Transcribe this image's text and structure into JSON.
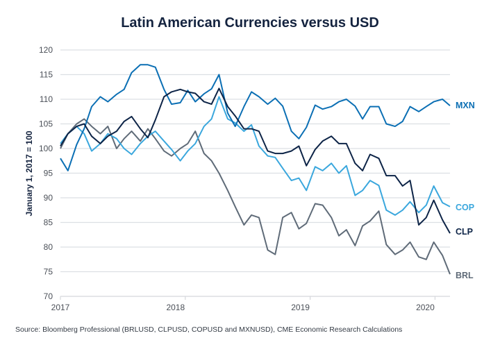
{
  "chart_data": {
    "type": "line",
    "title": "Latin American Currencies versus USD",
    "xlabel": "",
    "ylabel": "January 1, 2017 = 100",
    "ylim": [
      70,
      120
    ],
    "xlim": [
      2017,
      2020.12
    ],
    "yticks": [
      70,
      75,
      80,
      85,
      90,
      95,
      100,
      105,
      110,
      115,
      120
    ],
    "xticks": [
      {
        "value": 2017,
        "label": "2017"
      },
      {
        "value": 2018,
        "label": "2018"
      },
      {
        "value": 2019,
        "label": "2019"
      },
      {
        "value": 2020,
        "label": "2020"
      }
    ],
    "grid": "horizontal",
    "legend": "inline-right",
    "x": [
      2017.0,
      2017.06,
      2017.13,
      2017.19,
      2017.25,
      2017.32,
      2017.38,
      2017.45,
      2017.51,
      2017.57,
      2017.64,
      2017.7,
      2017.76,
      2017.83,
      2017.89,
      2017.96,
      2018.02,
      2018.08,
      2018.15,
      2018.21,
      2018.27,
      2018.34,
      2018.4,
      2018.47,
      2018.53,
      2018.59,
      2018.66,
      2018.72,
      2018.78,
      2018.85,
      2018.91,
      2018.97,
      2019.04,
      2019.1,
      2019.17,
      2019.23,
      2019.29,
      2019.36,
      2019.42,
      2019.48,
      2019.55,
      2019.61,
      2019.68,
      2019.74,
      2019.8,
      2019.87,
      2019.93,
      2019.99,
      2020.06,
      2020.12
    ],
    "series": [
      {
        "name": "MXN",
        "color": "#0b6fb4",
        "values": [
          98,
          95.5,
          100.8,
          104,
          108.5,
          110.5,
          109.5,
          111,
          112,
          115.4,
          117,
          117,
          116.5,
          112,
          109,
          109.3,
          111.8,
          109.5,
          111.1,
          112.1,
          115,
          107.2,
          104.5,
          108.5,
          111.5,
          110.5,
          109,
          110.2,
          108.6,
          103.5,
          102,
          104.3,
          108.8,
          108,
          108.5,
          109.5,
          110,
          108.6,
          106,
          108.5,
          108.5,
          105,
          104.5,
          105.5,
          108.5,
          107.5,
          108.5,
          109.5,
          110,
          108.7
        ]
      },
      {
        "name": "COP",
        "color": "#3aa7dd",
        "values": [
          101,
          103,
          104.5,
          103,
          99.5,
          101,
          103,
          102,
          100,
          98.8,
          101,
          102.5,
          103.5,
          101.5,
          99.8,
          97.5,
          99.5,
          101,
          104.5,
          106,
          110.5,
          106,
          105.2,
          103.5,
          104.8,
          100.5,
          98.5,
          98.2,
          96,
          93.5,
          94,
          91.5,
          96.3,
          95.5,
          97,
          95,
          96.5,
          90.5,
          91.5,
          93.5,
          92.5,
          87.5,
          86.5,
          87.5,
          89.2,
          87,
          88.5,
          92.4,
          89,
          88.2
        ]
      },
      {
        "name": "CLP",
        "color": "#0d2447",
        "values": [
          100.5,
          103,
          104.5,
          105,
          102.5,
          101,
          102.5,
          103.5,
          105.5,
          106.5,
          104,
          102.2,
          105.8,
          110.5,
          111.5,
          112,
          111.5,
          111.2,
          109.5,
          109,
          112.2,
          108.5,
          106.6,
          104,
          104,
          103.5,
          99.5,
          99,
          99,
          99.5,
          100.5,
          96.5,
          99.8,
          101.5,
          102.5,
          101,
          101,
          97,
          95.5,
          98.8,
          98,
          94.5,
          94.5,
          92.4,
          93.5,
          84.5,
          86,
          89.5,
          85.5,
          82.8
        ]
      },
      {
        "name": "BRL",
        "color": "#5f6b78",
        "values": [
          100,
          103,
          105,
          106,
          104.5,
          103,
          104.5,
          100,
          102,
          103.5,
          101.5,
          104,
          102,
          99.5,
          98.5,
          100,
          101,
          103.5,
          99,
          97.5,
          95,
          91.5,
          88.2,
          84.5,
          86.5,
          86,
          79.4,
          78.5,
          86,
          87,
          83.7,
          84.8,
          88.8,
          88.5,
          86,
          82.3,
          83.5,
          80.3,
          84.3,
          85.3,
          87.3,
          80.5,
          78.5,
          79.4,
          81,
          78,
          77.5,
          81,
          78.3,
          74.5
        ]
      }
    ],
    "source": "Source: Bloomberg Professional (BRLUSD, CLPUSD, COPUSD and MXNUSD), CME Economic Research Calculations"
  }
}
